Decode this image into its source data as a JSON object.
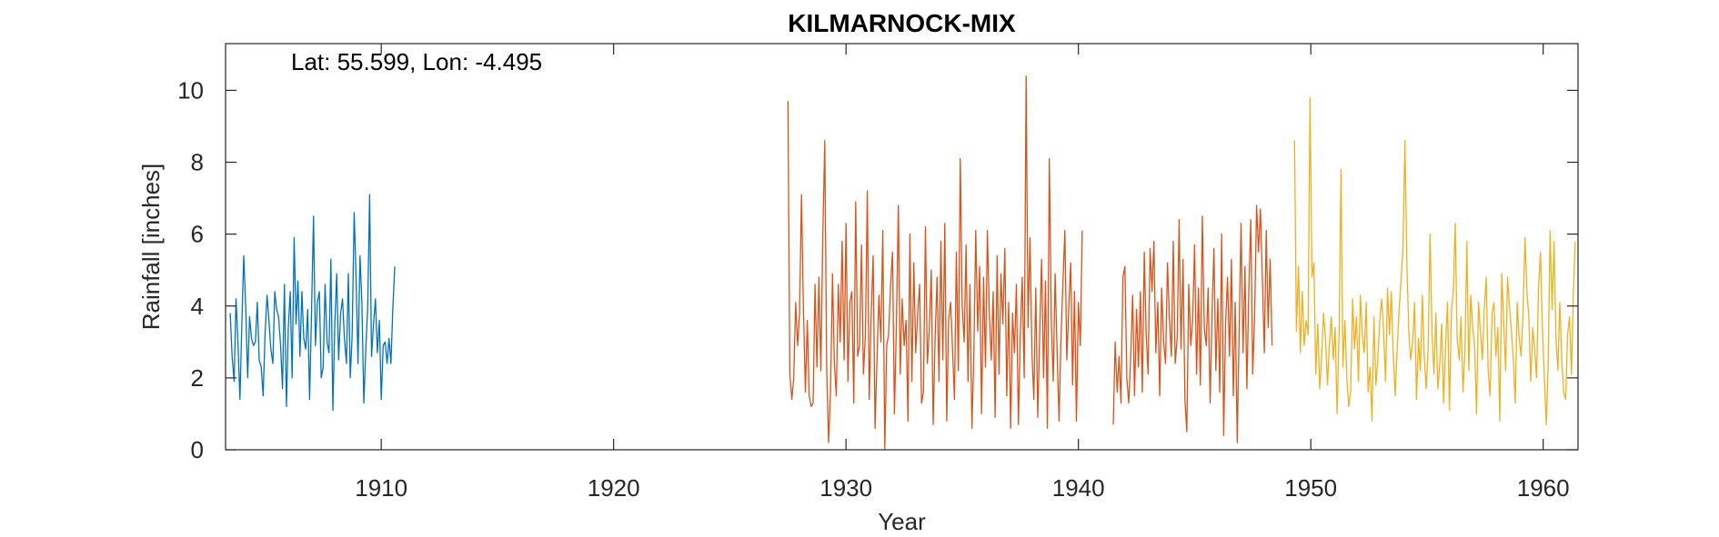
{
  "chart_data": {
    "type": "line",
    "title": "KILMARNOCK-MIX",
    "xlabel": "Year",
    "ylabel": "Rainfall [inches]",
    "annotation": "Lat: 55.599, Lon: -4.495",
    "xlim": [
      1903.3,
      1961.5
    ],
    "ylim": [
      0,
      11.3
    ],
    "xticks": [
      1910,
      1920,
      1930,
      1940,
      1950,
      1960
    ],
    "yticks": [
      0,
      2,
      4,
      6,
      8,
      10
    ],
    "grid": false,
    "series": [
      {
        "color": "#0072BD",
        "x_start": 1903.5,
        "step": 0.0833333,
        "values": [
          3.8,
          2.6,
          1.9,
          4.2,
          3.0,
          1.4,
          3.5,
          5.4,
          4.0,
          2.0,
          3.7,
          3.1,
          2.9,
          3.0,
          4.1,
          2.5,
          2.3,
          1.5,
          3.2,
          4.3,
          3.6,
          2.8,
          2.4,
          4.4,
          3.9,
          3.7,
          2.9,
          1.7,
          4.6,
          1.2,
          3.4,
          4.4,
          2.0,
          5.9,
          3.5,
          4.7,
          2.6,
          4.4,
          3.1,
          2.8,
          3.9,
          1.4,
          3.8,
          6.5,
          2.9,
          4.1,
          4.4,
          2.0,
          2.3,
          4.6,
          3.0,
          2.7,
          5.3,
          1.1,
          3.5,
          4.9,
          2.5,
          3.8,
          4.2,
          3.1,
          2.4,
          4.9,
          2.0,
          3.2,
          6.6,
          4.8,
          2.4,
          5.4,
          4.1,
          1.3,
          2.8,
          4.0,
          7.1,
          2.6,
          3.5,
          4.2,
          2.7,
          3.6,
          1.4,
          2.9,
          3.0,
          2.4,
          3.1,
          2.4,
          4.0,
          5.1
        ]
      },
      {
        "color": "#D95319",
        "x_start": 1927.5,
        "step": 0.0833333,
        "values": [
          9.7,
          2.1,
          1.4,
          2.0,
          4.1,
          2.9,
          3.8,
          7.1,
          4.0,
          1.6,
          3.6,
          1.5,
          1.2,
          1.3,
          4.6,
          2.3,
          4.8,
          2.2,
          5.9,
          8.6,
          2.3,
          0.2,
          1.6,
          4.9,
          2.4,
          1.5,
          4.6,
          3.0,
          5.8,
          2.5,
          6.3,
          1.9,
          4.1,
          4.4,
          1.3,
          6.9,
          2.6,
          2.9,
          5.7,
          2.1,
          3.2,
          7.2,
          1.4,
          3.8,
          5.4,
          0.6,
          2.5,
          4.3,
          3.0,
          6.1,
          0.0,
          2.9,
          3.2,
          4.6,
          5.5,
          1.0,
          3.4,
          6.8,
          2.1,
          4.2,
          2.9,
          3.6,
          0.8,
          6.0,
          1.9,
          5.2,
          2.7,
          3.8,
          4.6,
          1.3,
          1.6,
          6.2,
          2.4,
          3.3,
          5.0,
          0.7,
          3.1,
          4.8,
          1.9,
          5.8,
          2.5,
          6.3,
          0.8,
          3.6,
          4.1,
          2.8,
          1.4,
          5.5,
          2.2,
          8.1,
          4.0,
          3.0,
          5.7,
          1.9,
          4.6,
          0.6,
          2.6,
          6.1,
          3.3,
          5.1,
          1.0,
          4.8,
          2.3,
          6.1,
          3.8,
          2.5,
          4.4,
          0.9,
          5.4,
          2.1,
          4.9,
          3.5,
          5.6,
          1.5,
          4.1,
          0.6,
          3.8,
          2.7,
          4.6,
          0.7,
          3.2,
          4.8,
          2.0,
          10.4,
          3.4,
          5.9,
          2.7,
          1.4,
          4.5,
          0.9,
          3.2,
          5.3,
          2.0,
          4.7,
          0.6,
          8.1,
          3.6,
          1.9,
          4.9,
          2.7,
          0.8,
          3.1,
          4.6,
          6.1,
          2.5,
          3.9,
          5.2,
          1.8,
          4.4,
          0.8,
          4.1,
          2.9,
          6.1
        ]
      },
      {
        "color": "#D95319",
        "x_start": 1941.5,
        "step": 0.0833333,
        "values": [
          0.7,
          3.0,
          1.6,
          2.6,
          1.3,
          4.8,
          5.1,
          2.0,
          1.3,
          2.6,
          4.3,
          1.5,
          3.9,
          2.3,
          4.4,
          1.6,
          5.5,
          3.2,
          2.1,
          5.6,
          4.4,
          5.8,
          2.7,
          4.1,
          1.5,
          4.5,
          3.0,
          2.4,
          5.2,
          3.7,
          2.6,
          5.8,
          2.4,
          3.1,
          6.4,
          2.8,
          5.3,
          1.4,
          0.5,
          4.6,
          2.9,
          3.6,
          5.7,
          2.1,
          4.5,
          1.8,
          6.5,
          3.4,
          2.9,
          4.5,
          1.3,
          3.8,
          5.6,
          2.2,
          4.2,
          1.6,
          6.0,
          0.4,
          3.5,
          4.8,
          2.6,
          5.3,
          1.5,
          4.1,
          0.2,
          3.3,
          6.3,
          2.7,
          5.1,
          1.7,
          4.4,
          6.4,
          2.1,
          3.7,
          6.8,
          5.5,
          6.7,
          4.8,
          2.7,
          6.1,
          3.4,
          5.3,
          2.9
        ]
      },
      {
        "color": "#EDB120",
        "x_start": 1949.3,
        "step": 0.0833333,
        "values": [
          8.6,
          3.3,
          5.1,
          2.7,
          4.4,
          2.9,
          3.6,
          3.2,
          9.8,
          4.8,
          5.2,
          2.1,
          3.5,
          1.7,
          2.6,
          3.8,
          3.1,
          1.8,
          2.9,
          3.7,
          2.5,
          3.4,
          1.0,
          3.3,
          7.8,
          2.3,
          3.6,
          2.0,
          1.2,
          1.6,
          4.2,
          2.8,
          3.7,
          1.9,
          4.3,
          3.2,
          2.7,
          4.1,
          1.6,
          2.3,
          0.8,
          3.7,
          1.8,
          2.5,
          3.6,
          4.2,
          3.3,
          1.9,
          4.5,
          3.2,
          4.4,
          2.6,
          1.5,
          2.8,
          3.9,
          4.7,
          5.6,
          8.6,
          5.2,
          3.3,
          2.5,
          3.0,
          4.1,
          1.4,
          3.1,
          2.2,
          4.3,
          2.6,
          1.7,
          2.8,
          6.0,
          3.2,
          2.1,
          3.8,
          1.7,
          2.4,
          3.5,
          1.3,
          2.9,
          4.1,
          1.1,
          3.9,
          4.4,
          6.3,
          3.1,
          2.5,
          3.7,
          1.6,
          2.8,
          5.8,
          2.2,
          4.3,
          3.4,
          2.9,
          1.0,
          4.1,
          3.3,
          2.5,
          3.9,
          4.8,
          2.2,
          1.5,
          3.8,
          4.1,
          2.6,
          3.4,
          0.8,
          4.9,
          3.6,
          2.2,
          4.8,
          4.0,
          3.3,
          2.5,
          1.3,
          4.1,
          3.1,
          2.6,
          3.8,
          5.9,
          4.4,
          3.7,
          1.9,
          3.4,
          2.8,
          2.0,
          4.5,
          5.5,
          3.4,
          2.0,
          0.7,
          2.4,
          6.1,
          3.9,
          5.8,
          3.1,
          2.2,
          4.1,
          2.5,
          1.6,
          1.4,
          3.2,
          3.7,
          2.1,
          4.4,
          5.8
        ]
      }
    ]
  }
}
